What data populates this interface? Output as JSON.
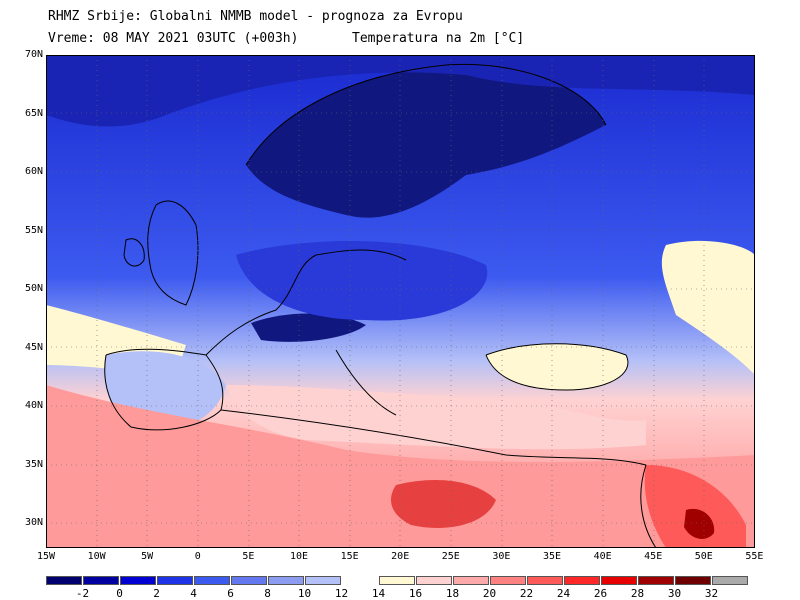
{
  "header": {
    "line1": "RHMZ Srbije: Globalni NMMB model - prognoza za Evropu",
    "line2_left": "Vreme: 08 MAY 2021 03UTC (+003h)",
    "line2_right": "Temperatura na 2m [°C]"
  },
  "axes": {
    "lat_labels": [
      "70N",
      "65N",
      "60N",
      "55N",
      "50N",
      "45N",
      "40N",
      "35N",
      "30N"
    ],
    "lon_labels": [
      "15W",
      "10W",
      "5W",
      "0",
      "5E",
      "10E",
      "15E",
      "20E",
      "25E",
      "30E",
      "35E",
      "40E",
      "45E",
      "50E",
      "55E"
    ]
  },
  "legend": {
    "labels": [
      "-2",
      "0",
      "2",
      "4",
      "6",
      "8",
      "10",
      "12",
      "14",
      "16",
      "18",
      "20",
      "22",
      "24",
      "26",
      "28",
      "30",
      "32"
    ],
    "colors": [
      "#00006e",
      "#0000a0",
      "#0000d2",
      "#1e32e6",
      "#3c5af0",
      "#6478f0",
      "#8c9cf0",
      "#b4c0f8",
      "#ffffff",
      "#fff8d2",
      "#ffd2d2",
      "#ffaaaa",
      "#ff8282",
      "#ff5a5a",
      "#ff2828",
      "#e60000",
      "#a00000",
      "#6e0000",
      "#aaaaaa"
    ]
  },
  "colors": {
    "land_cold": "#2a3ad8",
    "land_very_cold": "#101880",
    "sea_mild": "#fff8d2",
    "africa_warm": "#ff9a9a",
    "hot": "#e01010"
  }
}
